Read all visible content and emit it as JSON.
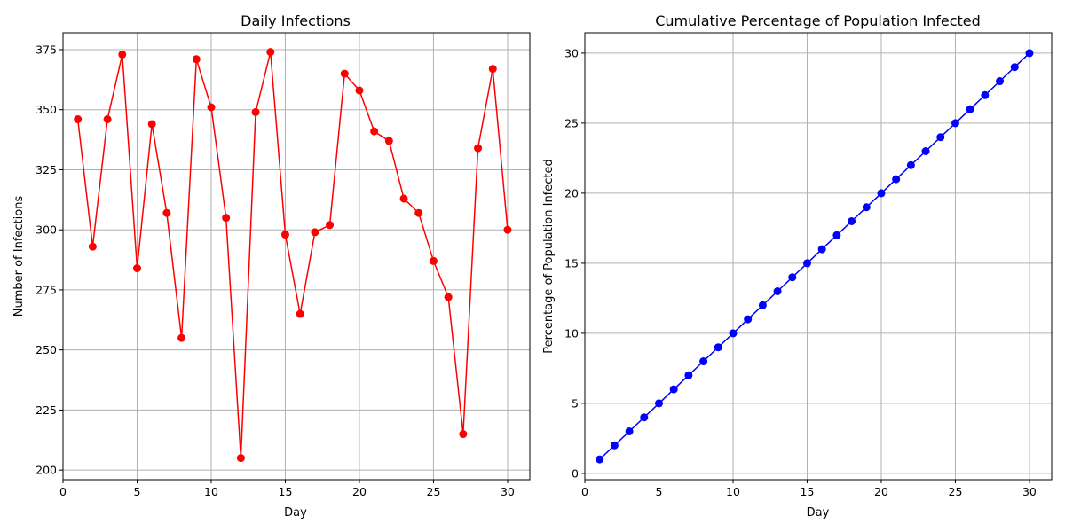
{
  "chart_data": [
    {
      "type": "line",
      "title": "Daily Infections",
      "xlabel": "Day",
      "ylabel": "Number of Infections",
      "xlim": [
        0,
        31.5
      ],
      "ylim": [
        196,
        382
      ],
      "xticks": [
        0,
        5,
        10,
        15,
        20,
        25,
        30
      ],
      "yticks": [
        200,
        225,
        250,
        275,
        300,
        325,
        350,
        375
      ],
      "grid": true,
      "color": "#ff0000",
      "marker": "circle",
      "x": [
        1,
        2,
        3,
        4,
        5,
        6,
        7,
        8,
        9,
        10,
        11,
        12,
        13,
        14,
        15,
        16,
        17,
        18,
        19,
        20,
        21,
        22,
        23,
        24,
        25,
        26,
        27,
        28,
        29,
        30
      ],
      "values": [
        346,
        293,
        346,
        373,
        284,
        344,
        307,
        255,
        371,
        351,
        305,
        205,
        349,
        374,
        298,
        265,
        299,
        302,
        365,
        358,
        341,
        337,
        313,
        307,
        287,
        272,
        215,
        334,
        367,
        300
      ]
    },
    {
      "type": "line",
      "title": "Cumulative Percentage of Population Infected",
      "xlabel": "Day",
      "ylabel": "Percentage of Population Infected",
      "xlim": [
        0,
        31.5
      ],
      "ylim": [
        -0.45,
        31.45
      ],
      "xticks": [
        0,
        5,
        10,
        15,
        20,
        25,
        30
      ],
      "yticks": [
        0,
        5,
        10,
        15,
        20,
        25,
        30
      ],
      "grid": true,
      "color": "#0000ff",
      "marker": "circle",
      "x": [
        1,
        2,
        3,
        4,
        5,
        6,
        7,
        8,
        9,
        10,
        11,
        12,
        13,
        14,
        15,
        16,
        17,
        18,
        19,
        20,
        21,
        22,
        23,
        24,
        25,
        26,
        27,
        28,
        29,
        30
      ],
      "values": [
        1,
        2,
        3,
        4,
        5,
        6,
        7,
        8,
        9,
        10,
        11,
        12,
        13,
        14,
        15,
        16,
        17,
        18,
        19,
        20,
        21,
        22,
        23,
        24,
        25,
        26,
        27,
        28,
        29,
        30
      ]
    }
  ]
}
